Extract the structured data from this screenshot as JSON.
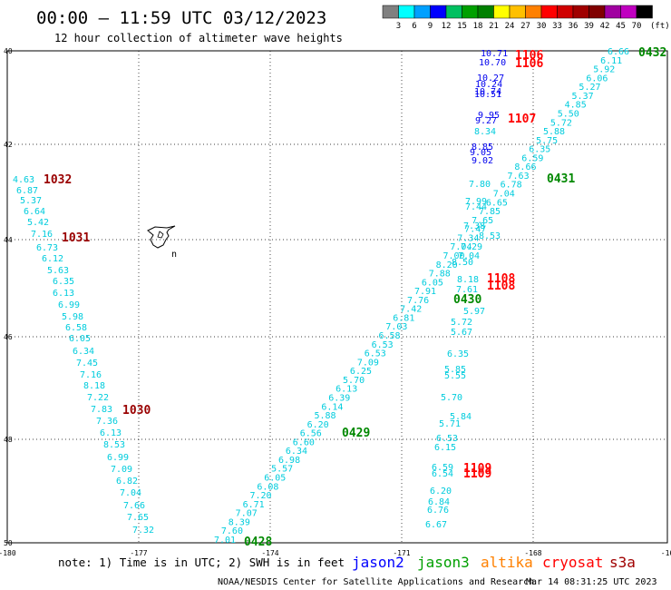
{
  "header": {
    "title": "00:00 – 11:59 UTC 03/12/2023",
    "subtitle": "12 hour collection of altimeter wave heights",
    "scale_labels": [
      "3",
      "6",
      "9",
      "12",
      "15",
      "18",
      "21",
      "24",
      "27",
      "30",
      "33",
      "36",
      "39",
      "42",
      "45",
      "70"
    ],
    "scale_unit": "(ft)",
    "scale_colors": [
      "#808080",
      "#00ffff",
      "#00a0ff",
      "#0000ff",
      "#00c060",
      "#00a000",
      "#008000",
      "#ffff00",
      "#ffc000",
      "#ff8000",
      "#ff0000",
      "#d00000",
      "#a00000",
      "#800000",
      "#a000a0",
      "#c000c0",
      "#000000"
    ]
  },
  "axes": {
    "lat_labels": [
      "40",
      "42",
      "44",
      "46",
      "48",
      "50"
    ],
    "lon_labels": [
      "-180",
      "-177",
      "-174",
      "-171",
      "-168",
      "-16"
    ]
  },
  "footer": {
    "note": "note: 1) Time is in UTC; 2) SWH is in feet",
    "credit": "NOAA/NESDIS Center for Satellite Applications and Research",
    "timestamp": "Mar 14 08:31:25 UTC 2023"
  },
  "legend": [
    {
      "name": "jason2",
      "color": "#0000ff"
    },
    {
      "name": "jason3",
      "color": "#00a000"
    },
    {
      "name": "altika",
      "color": "#ff8000"
    },
    {
      "name": "cryosat",
      "color": "#ff0000"
    },
    {
      "name": "s3a",
      "color": "#a00000"
    }
  ],
  "colors": {
    "cyan": "#00ccdd",
    "blue": "#0000ee",
    "green": "#008800",
    "red": "#ff0000",
    "darkred": "#990000"
  },
  "tracks": [
    {
      "name": "track-1030-1032",
      "label_color": "cyan",
      "values": [
        "4.63",
        "6.87",
        "5.37",
        "6.64",
        "5.42",
        "7.16",
        "6.73",
        "6.12",
        "5.63",
        "6.35",
        "6.13",
        "6.99",
        "5.98",
        "6.58",
        "6.05",
        "6.34",
        "7.45",
        "7.16",
        "8.18",
        "7.22",
        "7.83",
        "7.36",
        "6.13",
        "8.53",
        "6.99",
        "7.09",
        "6.82",
        "7.04",
        "7.66",
        "7.65",
        "7.32"
      ]
    },
    {
      "name": "track-0428-0432",
      "label_color": "cyan",
      "values": [
        "7.01",
        "7.60",
        "8.39",
        "7.07",
        "6.71",
        "7.20",
        "6.08",
        "6.05",
        "5.57",
        "6.98",
        "6.34",
        "6.60",
        "6.56",
        "6.20",
        "5.88",
        "6.14",
        "6.39",
        "6.13",
        "5.70",
        "6.25",
        "7.09",
        "6.53",
        "6.53",
        "6.58",
        "7.03",
        "6.81",
        "7.42",
        "7.76",
        "7.91",
        "6.05",
        "7.88",
        "8.20",
        "7.00",
        "7.04",
        "7.34",
        "7.47",
        "7.65",
        "7.85",
        "6.65",
        "7.04",
        "6.78",
        "7.63",
        "8.66",
        "6.59",
        "6.35",
        "5.75",
        "5.88",
        "5.72",
        "5.50",
        "4.85",
        "5.37",
        "5.27",
        "6.06",
        "5.92",
        "6.11",
        "6.66"
      ]
    },
    {
      "name": "track-1105-1109",
      "label_color": "cyan",
      "values": [
        "8.34",
        "7.80",
        "7.99",
        "7.44",
        "7.38",
        "8.53",
        "7.29",
        "7.04",
        "8.50",
        "7.61",
        "8.18",
        "5.97",
        "5.72",
        "5.67",
        "6.35",
        "5.85",
        "5.55",
        "5.70",
        "5.84",
        "5.71",
        "6.53",
        "6.15",
        "6.59",
        "6.54",
        "6.20",
        "6.84",
        "6.76",
        "6.67"
      ]
    },
    {
      "name": "track-1105-blue",
      "label_color": "blue",
      "values": [
        "10.71",
        "10.70",
        "10.27",
        "10.24",
        "10.51",
        "10.74",
        "9.95",
        "9.27",
        "8.85",
        "9.02",
        "9.05"
      ]
    }
  ],
  "pass_labels": [
    {
      "text": "1032",
      "color": "darkred"
    },
    {
      "text": "1031",
      "color": "darkred"
    },
    {
      "text": "1030",
      "color": "darkred"
    },
    {
      "text": "0432",
      "color": "green"
    },
    {
      "text": "0431",
      "color": "green"
    },
    {
      "text": "0430",
      "color": "green"
    },
    {
      "text": "0429",
      "color": "green"
    },
    {
      "text": "0428",
      "color": "green"
    },
    {
      "text": "1106",
      "color": "red"
    },
    {
      "text": "1106",
      "color": "red"
    },
    {
      "text": "1107",
      "color": "red"
    },
    {
      "text": "1108",
      "color": "red"
    },
    {
      "text": "1108",
      "color": "red"
    },
    {
      "text": "1109",
      "color": "red"
    },
    {
      "text": "1109",
      "color": "red"
    }
  ],
  "island_label": "n"
}
